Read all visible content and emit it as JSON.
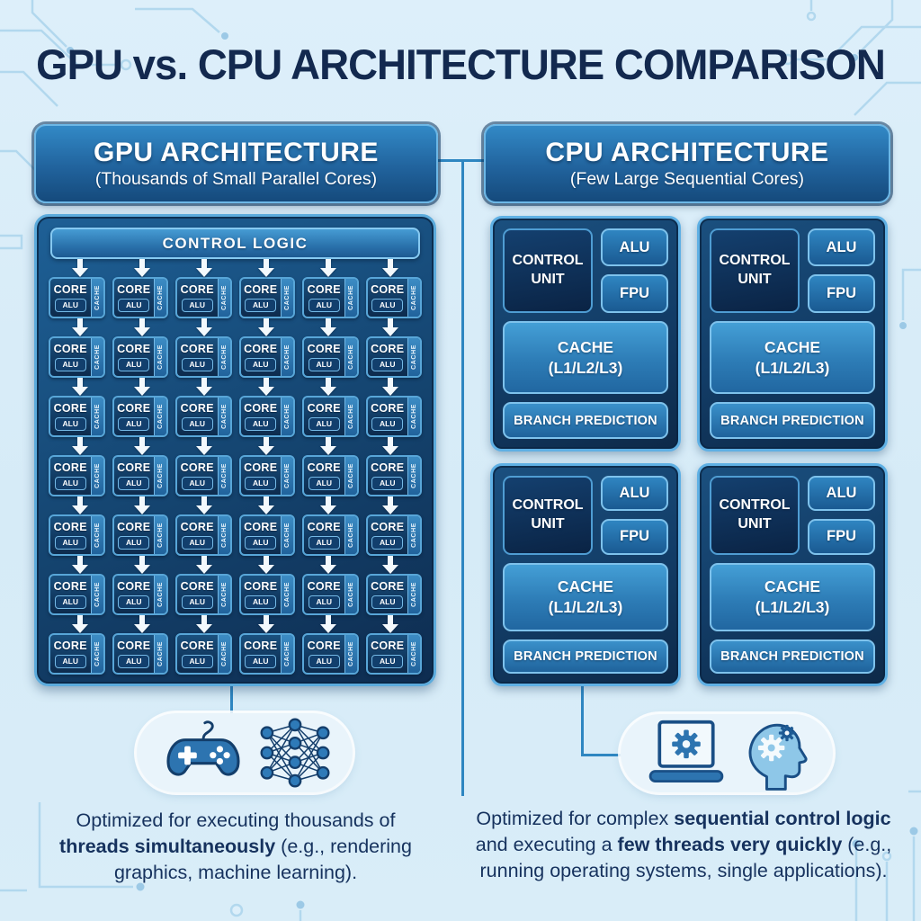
{
  "title": "GPU vs. CPU ARCHITECTURE COMPARISON",
  "colors": {
    "background": "#d9edf8",
    "accent_line": "#2e86c1",
    "navy_text": "#13294f",
    "panel_border": "#5fb0e4",
    "white": "#ffffff"
  },
  "gpu": {
    "header_title": "GPU ARCHITECTURE",
    "header_subtitle": "(Thousands of Small Parallel Cores)",
    "control_bar_label": "CONTROL LOGIC",
    "grid_rows": 7,
    "grid_cols": 6,
    "core_label": "CORE",
    "core_alu_label": "ALU",
    "core_cache_label": "CACHE",
    "icons": [
      "game-controller",
      "neural-network"
    ],
    "caption_segments": [
      {
        "text": "Optimized for executing thousands of ",
        "bold": false
      },
      {
        "text": "threads simultaneously",
        "bold": true
      },
      {
        "text": " (e.g., rendering graphics, machine learning).",
        "bold": false
      }
    ]
  },
  "cpu": {
    "header_title": "CPU ARCHITECTURE",
    "header_subtitle": "(Few Large Sequential Cores)",
    "core_count": 4,
    "block": {
      "control_unit_line1": "CONTROL",
      "control_unit_line2": "UNIT",
      "alu": "ALU",
      "fpu": "FPU",
      "cache_line1": "CACHE",
      "cache_line2": "(L1/L2/L3)",
      "branch": "BRANCH PREDICTION"
    },
    "icons": [
      "laptop-gear",
      "head-gears"
    ],
    "caption_segments": [
      {
        "text": "Optimized for complex ",
        "bold": false
      },
      {
        "text": "sequential control logic",
        "bold": true
      },
      {
        "text": " and executing a ",
        "bold": false
      },
      {
        "text": "few threads very quickly",
        "bold": true
      },
      {
        "text": " (e.g., running operating systems, single applications).",
        "bold": false
      }
    ]
  }
}
